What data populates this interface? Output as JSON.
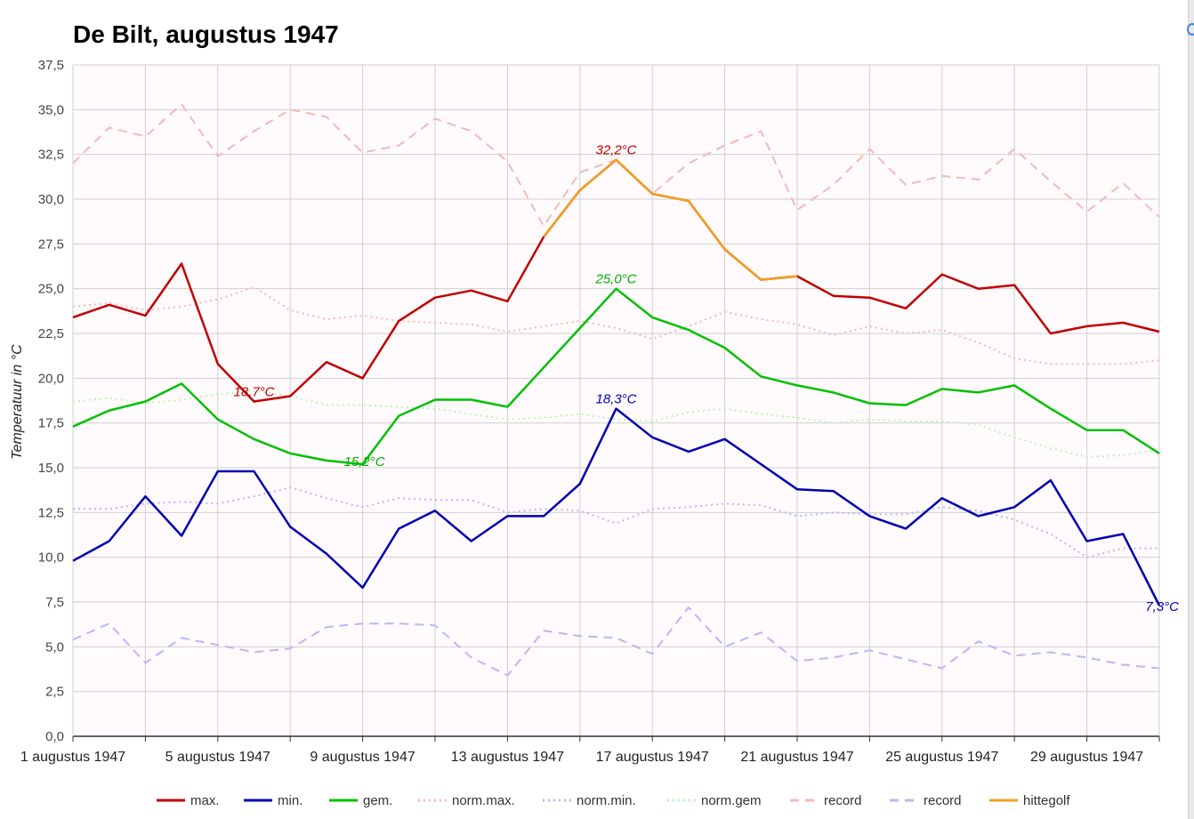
{
  "chart_data": {
    "type": "line",
    "title": "De Bilt, augustus 1947",
    "ylabel": "Temperatuur in °C",
    "xlabel": "",
    "ylim": [
      0,
      37.5
    ],
    "yticks": [
      "0,0",
      "2,5",
      "5,0",
      "7,5",
      "10,0",
      "12,5",
      "15,0",
      "17,5",
      "20,0",
      "22,5",
      "25,0",
      "27,5",
      "30,0",
      "32,5",
      "35,0",
      "37,5"
    ],
    "x_day_range": [
      1,
      31
    ],
    "x_tick_days": [
      1,
      5,
      9,
      13,
      17,
      21,
      25,
      29
    ],
    "x_tick_labels": [
      "1 augustus 1947",
      "5 augustus 1947",
      "9 augustus 1947",
      "13 augustus 1947",
      "17 augustus 1947",
      "21 augustus 1947",
      "25 augustus 1947",
      "29 augustus 1947"
    ],
    "grid": true,
    "legend_position": "bottom",
    "series": [
      {
        "name": "max.",
        "color": "#c00000",
        "style": "solid",
        "values": [
          23.4,
          24.1,
          23.5,
          26.4,
          20.8,
          18.7,
          19.0,
          20.9,
          20.0,
          23.2,
          24.5,
          24.9,
          24.3,
          27.9,
          30.5,
          32.2,
          30.3,
          29.9,
          27.2,
          25.5,
          25.7,
          24.6,
          24.5,
          23.9,
          25.8,
          25.0,
          25.2,
          22.5,
          22.9,
          23.1,
          22.6
        ]
      },
      {
        "name": "min.",
        "color": "#0000b0",
        "style": "solid",
        "values": [
          9.8,
          10.9,
          13.4,
          11.2,
          14.8,
          14.8,
          11.7,
          10.2,
          8.3,
          11.6,
          12.6,
          10.9,
          12.3,
          12.3,
          14.1,
          18.3,
          16.7,
          15.9,
          16.6,
          15.2,
          13.8,
          13.7,
          12.3,
          11.6,
          13.3,
          12.3,
          12.8,
          14.3,
          10.9,
          11.3,
          7.3
        ]
      },
      {
        "name": "gem.",
        "color": "#00c000",
        "style": "solid",
        "values": [
          17.3,
          18.2,
          18.7,
          19.7,
          17.7,
          16.6,
          15.8,
          15.4,
          15.2,
          17.9,
          18.8,
          18.8,
          18.4,
          20.6,
          22.8,
          25.0,
          23.4,
          22.7,
          21.7,
          20.1,
          19.6,
          19.2,
          18.6,
          18.5,
          19.4,
          19.2,
          19.6,
          18.3,
          17.1,
          17.1,
          15.8
        ]
      },
      {
        "name": "norm.max.",
        "color": "#f4b8b8",
        "style": "dotted",
        "values": [
          24.0,
          24.2,
          23.8,
          24.0,
          24.4,
          25.1,
          23.8,
          23.3,
          23.5,
          23.2,
          23.1,
          23.0,
          22.6,
          22.9,
          23.2,
          22.8,
          22.2,
          22.9,
          23.7,
          23.3,
          23.0,
          22.4,
          22.9,
          22.5,
          22.7,
          22.0,
          21.1,
          20.8,
          20.8,
          20.8,
          21.0
        ]
      },
      {
        "name": "norm.min.",
        "color": "#b8b8f4",
        "style": "dotted",
        "values": [
          12.7,
          12.7,
          13.0,
          13.1,
          13.0,
          13.4,
          13.9,
          13.3,
          12.8,
          13.3,
          13.2,
          13.2,
          12.5,
          12.7,
          12.6,
          11.9,
          12.7,
          12.8,
          13.0,
          12.9,
          12.3,
          12.5,
          12.4,
          12.4,
          12.8,
          12.6,
          12.1,
          11.3,
          10.0,
          10.5,
          10.5
        ]
      },
      {
        "name": "norm.gem",
        "color": "#b8f4b8",
        "style": "dotted",
        "values": [
          18.7,
          18.9,
          18.6,
          18.8,
          19.1,
          19.3,
          19.0,
          18.5,
          18.5,
          18.4,
          18.3,
          18.0,
          17.7,
          17.8,
          18.0,
          17.7,
          17.6,
          18.1,
          18.3,
          18.0,
          17.8,
          17.5,
          17.7,
          17.6,
          17.6,
          17.4,
          16.7,
          16.1,
          15.6,
          15.7,
          16.0
        ]
      },
      {
        "name": "record",
        "color": "#f4b8b8",
        "style": "dashed",
        "values": [
          32.0,
          34.0,
          33.5,
          35.3,
          32.4,
          33.8,
          35.0,
          34.6,
          32.6,
          33.0,
          34.5,
          33.8,
          32.1,
          28.5,
          31.5,
          32.2,
          30.3,
          32.0,
          33.0,
          33.8,
          29.4,
          30.8,
          32.8,
          30.8,
          31.3,
          31.1,
          32.8,
          31.0,
          29.3,
          30.9,
          29.0
        ]
      },
      {
        "name": "record",
        "color": "#b8b8f4",
        "style": "dashed",
        "values": [
          5.4,
          6.3,
          4.1,
          5.5,
          5.1,
          4.7,
          4.9,
          6.1,
          6.3,
          6.3,
          6.2,
          4.4,
          3.4,
          5.9,
          5.6,
          5.5,
          4.6,
          7.2,
          5.0,
          5.8,
          4.2,
          4.4,
          4.8,
          4.3,
          3.8,
          5.3,
          4.5,
          4.7,
          4.4,
          4.0,
          3.8
        ]
      },
      {
        "name": "hittegolf",
        "color": "#f0a020",
        "style": "solid",
        "start_day": 14,
        "values": [
          27.9,
          30.5,
          32.2,
          30.3,
          29.9,
          27.2,
          25.5,
          25.7
        ]
      }
    ],
    "annotations": [
      {
        "text": "32,2°C",
        "day": 16,
        "value": 32.2,
        "color": "#c00000"
      },
      {
        "text": "18,7°C",
        "day": 6,
        "value": 18.7,
        "color": "#c00000"
      },
      {
        "text": "25,0°C",
        "day": 16,
        "value": 25.0,
        "color": "#00b000"
      },
      {
        "text": "15,2°C",
        "day": 9,
        "value": 15.2,
        "color": "#00b000"
      },
      {
        "text": "18,3°C",
        "day": 16,
        "value": 18.3,
        "color": "#0000b0"
      },
      {
        "text": "7,3°C",
        "day": 31,
        "value": 7.3,
        "color": "#0000b0"
      }
    ]
  }
}
